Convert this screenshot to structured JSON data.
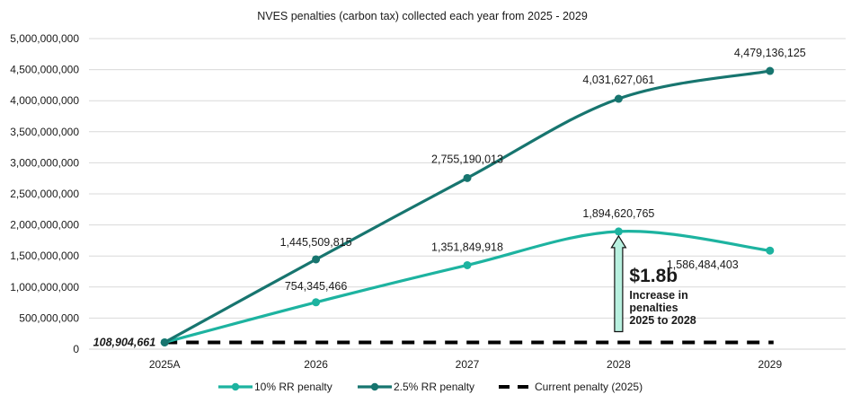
{
  "chart_data": {
    "type": "line",
    "title": "NVES penalties (carbon tax) collected each year from 2025 - 2029",
    "xlabel": "",
    "ylabel": "",
    "categories": [
      "2025A",
      "2026",
      "2027",
      "2028",
      "2029"
    ],
    "ylim": [
      0,
      5000000000
    ],
    "yticks": [
      0,
      500000000,
      1000000000,
      1500000000,
      2000000000,
      2500000000,
      3000000000,
      3500000000,
      4000000000,
      4500000000,
      5000000000
    ],
    "ytick_labels": [
      "0",
      "500,000,000",
      "1,000,000,000",
      "1,500,000,000",
      "2,000,000,000",
      "2,500,000,000",
      "3,000,000,000",
      "3,500,000,000",
      "4,000,000,000",
      "4,500,000,000",
      "5,000,000,000"
    ],
    "grid": true,
    "legend_position": "bottom",
    "series": [
      {
        "name": "10% RR penalty",
        "color": "#1db3a0",
        "style": "smooth-line-markers",
        "values": [
          108904661,
          754345466,
          1351849918,
          1894620765,
          1586484403
        ],
        "labels": [
          "",
          "754,345,466",
          "1,351,849,918",
          "1,894,620,765",
          "1,586,484,403"
        ]
      },
      {
        "name": "2.5% RR penalty",
        "color": "#17756f",
        "style": "smooth-line-markers",
        "values": [
          108904661,
          1445509815,
          2755190013,
          4031627061,
          4479136125
        ],
        "labels": [
          "",
          "1,445,509,815",
          "2,755,190,013",
          "4,031,627,061",
          "4,479,136,125"
        ]
      },
      {
        "name": "Current penalty (2025)",
        "color": "#000000",
        "style": "dashed",
        "values": [
          108904661,
          108904661,
          108904661,
          108904661,
          108904661
        ],
        "labels": [
          "108,904,661",
          "",
          "",
          "",
          ""
        ]
      }
    ],
    "annotations": {
      "arrow_from_value": 108904661,
      "arrow_to_value": 1894620765,
      "arrow_category": "2028",
      "arrow_fill": "#b8f0df",
      "headline": "$1.8b",
      "lines": [
        "Increase in",
        "penalties",
        "2025 to 2028"
      ]
    }
  }
}
